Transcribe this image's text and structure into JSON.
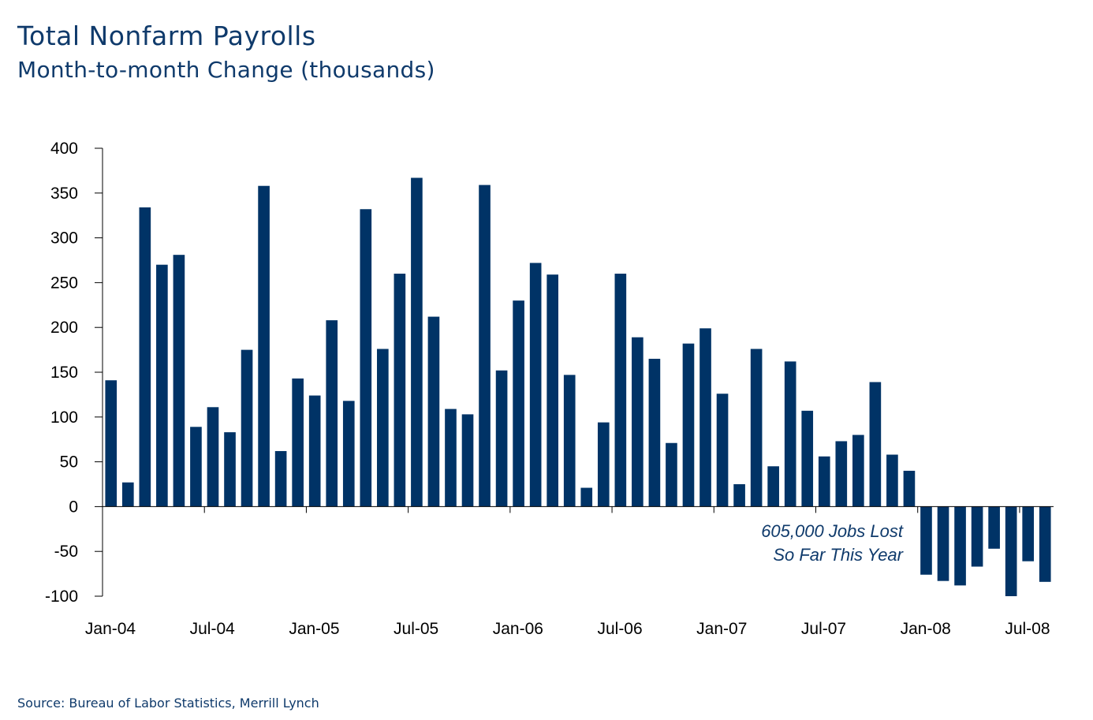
{
  "header": {
    "title": "Total Nonfarm Payrolls",
    "subtitle": "Month-to-month Change (thousands)"
  },
  "footer": {
    "source": "Source: Bureau of Labor Statistics, Merrill Lynch"
  },
  "colors": {
    "bar": "#003366",
    "axis": "#000000",
    "text": "#0f3a6b"
  },
  "chart_data": {
    "type": "bar",
    "title": "Total Nonfarm Payrolls",
    "subtitle": "Month-to-month Change (thousands)",
    "xlabel": "",
    "ylabel": "",
    "ylim": [
      -100,
      400
    ],
    "yticks": [
      400,
      350,
      300,
      250,
      200,
      150,
      100,
      50,
      0,
      -50,
      -100
    ],
    "ytick_labels": [
      "400",
      "350",
      "300",
      "250",
      "200",
      "150",
      "100",
      "50",
      "0",
      "-50",
      "-100"
    ],
    "xtick_labels": [
      "Jan-04",
      "Jul-04",
      "Jan-05",
      "Jul-05",
      "Jan-06",
      "Jul-06",
      "Jan-07",
      "Jul-07",
      "Jan-08",
      "Jul-08"
    ],
    "xtick_index": [
      0,
      6,
      12,
      18,
      24,
      30,
      36,
      42,
      48,
      54
    ],
    "grid": false,
    "categories": [
      "Jan-04",
      "Feb-04",
      "Mar-04",
      "Apr-04",
      "May-04",
      "Jun-04",
      "Jul-04",
      "Aug-04",
      "Sep-04",
      "Oct-04",
      "Nov-04",
      "Dec-04",
      "Jan-05",
      "Feb-05",
      "Mar-05",
      "Apr-05",
      "May-05",
      "Jun-05",
      "Jul-05",
      "Aug-05",
      "Sep-05",
      "Oct-05",
      "Nov-05",
      "Dec-05",
      "Jan-06",
      "Feb-06",
      "Mar-06",
      "Apr-06",
      "May-06",
      "Jun-06",
      "Jul-06",
      "Aug-06",
      "Sep-06",
      "Oct-06",
      "Nov-06",
      "Dec-06",
      "Jan-07",
      "Feb-07",
      "Mar-07",
      "Apr-07",
      "May-07",
      "Jun-07",
      "Jul-07",
      "Aug-07",
      "Sep-07",
      "Oct-07",
      "Nov-07",
      "Dec-07",
      "Jan-08",
      "Feb-08",
      "Mar-08",
      "Apr-08",
      "May-08",
      "Jun-08",
      "Jul-08",
      "Aug-08"
    ],
    "values": [
      141,
      27,
      334,
      270,
      281,
      89,
      111,
      83,
      175,
      358,
      62,
      143,
      124,
      208,
      118,
      332,
      176,
      260,
      367,
      212,
      109,
      103,
      359,
      152,
      230,
      272,
      259,
      147,
      21,
      94,
      260,
      189,
      165,
      71,
      182,
      199,
      126,
      25,
      176,
      45,
      162,
      107,
      56,
      73,
      80,
      139,
      58,
      40,
      -76,
      -83,
      -88,
      -67,
      -47,
      -100,
      -61,
      -84
    ],
    "annotation": [
      "605,000 Jobs Lost",
      "So Far This Year"
    ]
  }
}
